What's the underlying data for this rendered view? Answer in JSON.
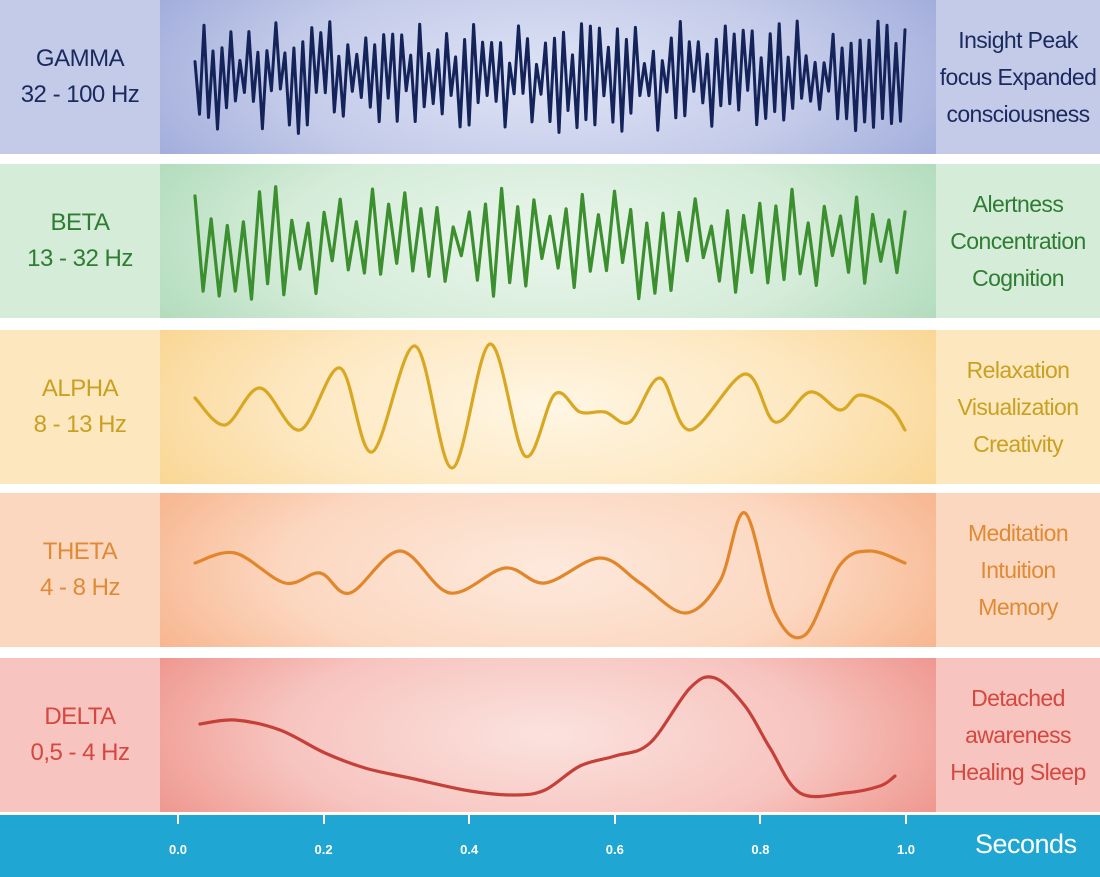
{
  "bands": [
    {
      "id": "gamma",
      "name": "GAMMA",
      "range": "32 - 100 Hz",
      "description": [
        "Insight Peak",
        "focus Expanded",
        "consciousness"
      ],
      "text_color": "#1b2a5e",
      "wave_color": "#14245a",
      "bg_side": "#c4cbe9",
      "bg_center": "#dfe4f5",
      "bg_edge": "#9aa6d8"
    },
    {
      "id": "beta",
      "name": "BETA",
      "range": "13 - 32 Hz",
      "description": [
        "Alertness",
        "Concentration",
        "Cognition"
      ],
      "text_color": "#2e7d32",
      "wave_color": "#3c8f2e",
      "bg_side": "#d5ecd9",
      "bg_center": "#eaf6ec",
      "bg_edge": "#a9d8b5"
    },
    {
      "id": "alpha",
      "name": "ALPHA",
      "range": "8 - 13 Hz",
      "description": [
        "Relaxation",
        "Visualization",
        "Creativity"
      ],
      "text_color": "#c9a020",
      "wave_color": "#d8a823",
      "bg_side": "#fde7bf",
      "bg_center": "#fff6e4",
      "bg_edge": "#f9d289"
    },
    {
      "id": "theta",
      "name": "THETA",
      "range": "4 - 8 Hz",
      "description": [
        "Meditation",
        "Intuition",
        "Memory"
      ],
      "text_color": "#e08a35",
      "wave_color": "#e2862c",
      "bg_side": "#fcd7c0",
      "bg_center": "#fde9dc",
      "bg_edge": "#f6ad82"
    },
    {
      "id": "delta",
      "name": "DELTA",
      "range": "0,5 - 4 Hz",
      "description": [
        "Detached",
        "awareness",
        "Healing Sleep"
      ],
      "text_color": "#d4483f",
      "wave_color": "#c6403a",
      "bg_side": "#f7c4bf",
      "bg_center": "#fbe2de",
      "bg_edge": "#ec8c82"
    }
  ],
  "axis": {
    "unit_label": "Seconds",
    "ticks": [
      "0.0",
      "0.2",
      "0.4",
      "0.6",
      "0.8",
      "1.0"
    ],
    "color": "#1fa6d2"
  }
}
